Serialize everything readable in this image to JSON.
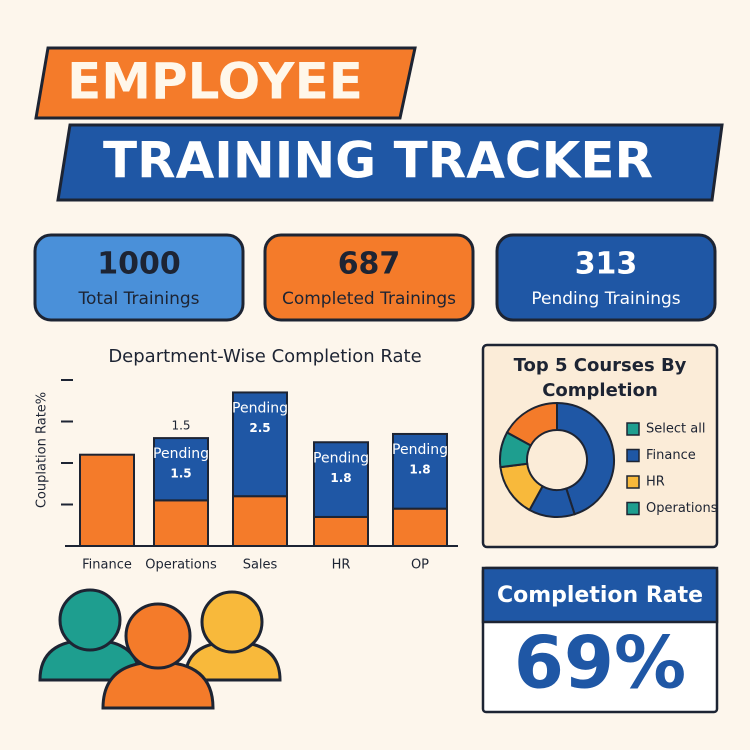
{
  "header": {
    "line1": "EMPLOYEE",
    "line2": "TRAINING TRACKER"
  },
  "kpis": [
    {
      "value": 1000,
      "label": "Total Trainings"
    },
    {
      "value": 687,
      "label": "Completed Trainings"
    },
    {
      "value": 313,
      "label": "Pending Trainings"
    }
  ],
  "chart_data": [
    {
      "type": "bar",
      "title": "Department-Wise Completion Rate",
      "y_label": "Couplation Rate%",
      "categories": [
        "Finance",
        "Operations",
        "Sales",
        "HR",
        "OP"
      ],
      "series": [
        {
          "color": "#f47b2a",
          "values": [
            2.2,
            1.1,
            1.2,
            0.7,
            0.9
          ]
        },
        {
          "name": "Pending",
          "color": "#1f57a5",
          "values": [
            null,
            1.5,
            2.5,
            1.8,
            1.8
          ]
        }
      ],
      "annotation": "1.5",
      "ylim": [
        0,
        4
      ],
      "yticks": [
        1,
        2,
        3,
        4
      ]
    },
    {
      "type": "pie",
      "title": "Top 5 Courses By Completion",
      "segments": [
        {
          "value": 17,
          "color": "#f47b2a"
        },
        {
          "value": 45,
          "color": "#1f57a5"
        },
        {
          "value": 13,
          "color": "#1f57a5"
        },
        {
          "value": 15,
          "color": "#f8b93b"
        },
        {
          "value": 10,
          "color": "#1e9e8f"
        }
      ],
      "legend": [
        {
          "name": "Select all",
          "color": "#1e9e8f"
        },
        {
          "name": "Finance",
          "color": "#1f57a5"
        },
        {
          "name": "HR",
          "color": "#f8b93b"
        },
        {
          "name": "Operations",
          "color": "#1e9e8f"
        }
      ]
    }
  ],
  "completion": {
    "title": "Completion Rate",
    "value": "69%"
  }
}
